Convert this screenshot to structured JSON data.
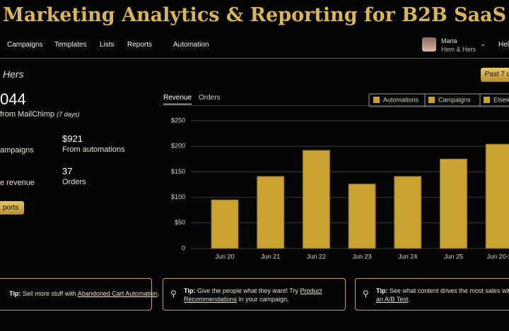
{
  "header": {
    "title": "Marketing Analytics & Reporting for B2B SaaS"
  },
  "nav": [
    "Campaigns",
    "Templates",
    "Lists",
    "Reports",
    "Automation"
  ],
  "user": {
    "name": "Maria",
    "account": "Hem & Hers",
    "help": "Hel"
  },
  "account_title": "Hers",
  "range_button": "Past 7 d",
  "stats": {
    "total": "044",
    "total_caption": "from MailChimp",
    "total_period": "(7 days)",
    "campaigns_label": "ampaigns",
    "automations_value": "$921",
    "automations_label": "From automations",
    "revenue_label": "e revenue",
    "orders_value": "37",
    "orders_label": "Orders",
    "reports_button": "ports"
  },
  "tabs": [
    "Revenue",
    "Orders"
  ],
  "chart_data": {
    "type": "bar",
    "legend": [
      "Automations",
      "Campaigns",
      "Elsew"
    ],
    "categories": [
      "Jun 20",
      "Jun 21",
      "Jun 22",
      "Jun 23",
      "Jun 24",
      "Jun 25",
      "Jun 20-2"
    ],
    "values": [
      95,
      141,
      192,
      126,
      141,
      175,
      204
    ],
    "color": "#c9a232",
    "ylim": [
      0,
      250
    ],
    "yticks": [
      0,
      {
        "value": 50,
        "label": "$50"
      },
      {
        "value": 100,
        "label": "$100"
      },
      {
        "value": 150,
        "label": "$150"
      },
      {
        "value": 200,
        "label": "$200"
      },
      {
        "value": 250,
        "label": "$250"
      }
    ],
    "grid": true
  },
  "tips": [
    {
      "label": "Tip:",
      "text": "Sell more stuff with",
      "link": "Abandoned Cart Automation",
      "after": "."
    },
    {
      "label": "Tip:",
      "text": "Give the people what they want! Try",
      "link": "Product Recommendations",
      "after": "in your campaign."
    },
    {
      "label": "Tip:",
      "text": "See what content drives the most sales with",
      "link": "an A/B Test",
      "after": "."
    }
  ]
}
